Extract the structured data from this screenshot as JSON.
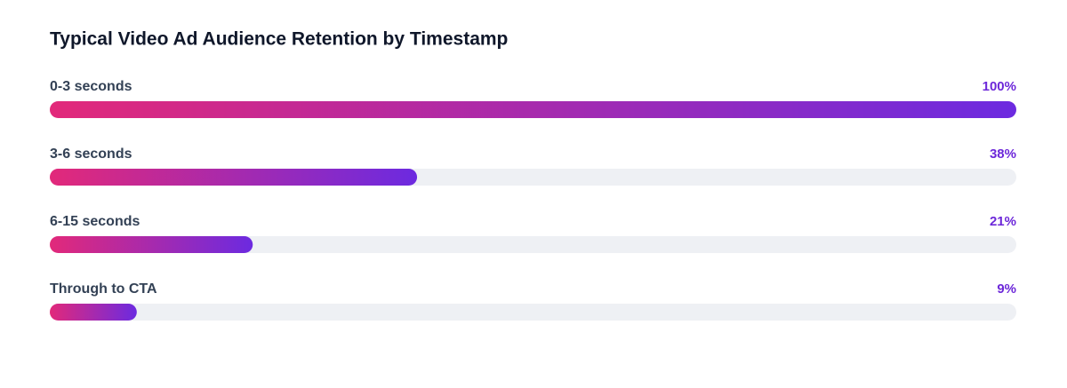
{
  "chart_data": {
    "type": "bar",
    "orientation": "horizontal",
    "title": "Typical Video Ad Audience Retention by Timestamp",
    "categories": [
      "0-3 seconds",
      "3-6 seconds",
      "6-15 seconds",
      "Through to CTA"
    ],
    "values": [
      100,
      38,
      21,
      9
    ],
    "value_labels": [
      "100%",
      "38%",
      "21%",
      "9%"
    ],
    "xlim": [
      0,
      100
    ],
    "gradient": [
      "#e2297a",
      "#6c2ae0"
    ],
    "track_color": "#eef0f4",
    "label_color": "#334155",
    "value_label_color": "#6d28d9"
  }
}
